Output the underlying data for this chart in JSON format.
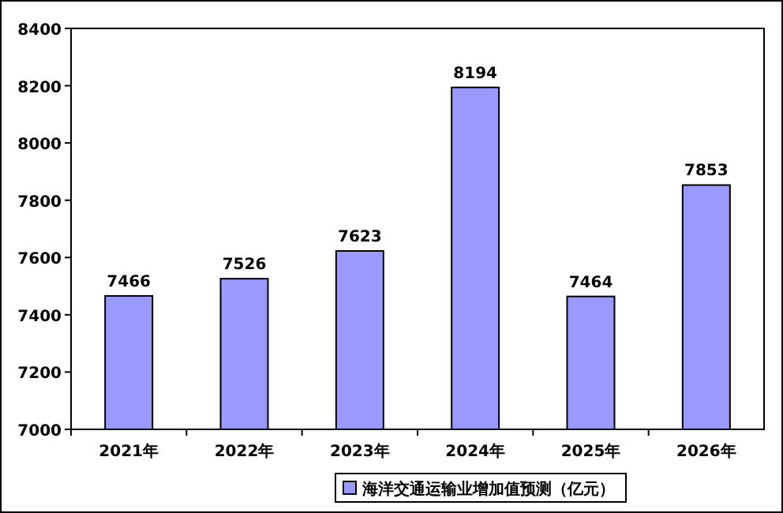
{
  "chart_data": {
    "type": "bar",
    "categories": [
      "2021年",
      "2022年",
      "2023年",
      "2024年",
      "2025年",
      "2026年"
    ],
    "series": [
      {
        "name": "海洋交通运输业增加值预测（亿元）",
        "color": "#9999ff",
        "values": [
          7466,
          7526,
          7623,
          8194,
          7464,
          7853
        ]
      }
    ],
    "ylim": [
      7000,
      8400
    ],
    "yticks": [
      7000,
      7200,
      7400,
      7600,
      7800,
      8000,
      8200,
      8400
    ],
    "data_labels": true,
    "legend": "bottom"
  }
}
